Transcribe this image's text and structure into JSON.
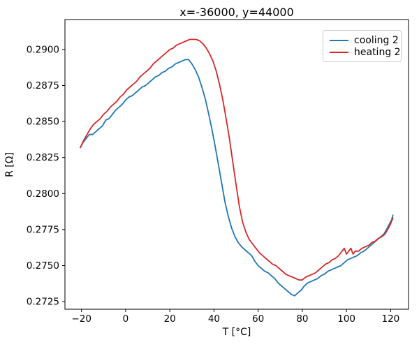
{
  "figure": {
    "title": "x=-36000, y=44000",
    "background": "#ffffff"
  },
  "chart_data": {
    "type": "line",
    "title": "x=-36000, y=44000",
    "xlabel": "T [°C]",
    "ylabel": "R [Ω]",
    "xlim": [
      -27.5,
      128.1
    ],
    "ylim": [
      0.27197,
      0.29208
    ],
    "xticks": [
      -20,
      0,
      20,
      40,
      60,
      80,
      100,
      120
    ],
    "yticks": [
      0.2725,
      0.275,
      0.2775,
      0.28,
      0.2825,
      0.285,
      0.2875,
      0.29
    ],
    "grid": false,
    "legend_position": "upper right",
    "axis_color": "#000000",
    "series": [
      {
        "name": "cooling 2",
        "color": "#1f77b4",
        "points": [
          [
            -20.5,
            0.2832
          ],
          [
            -19.5,
            0.2835
          ],
          [
            -18,
            0.2838
          ],
          [
            -16.5,
            0.2841
          ],
          [
            -15,
            0.2841
          ],
          [
            -13.5,
            0.2843
          ],
          [
            -12,
            0.2845
          ],
          [
            -10.5,
            0.2847
          ],
          [
            -9,
            0.2851
          ],
          [
            -7.5,
            0.2852
          ],
          [
            -6,
            0.2855
          ],
          [
            -4.5,
            0.2858
          ],
          [
            -3,
            0.286
          ],
          [
            -1.5,
            0.2862
          ],
          [
            0,
            0.2865
          ],
          [
            1.5,
            0.2867
          ],
          [
            3,
            0.2868
          ],
          [
            4.5,
            0.287
          ],
          [
            6,
            0.2872
          ],
          [
            7.5,
            0.2874
          ],
          [
            9,
            0.2875
          ],
          [
            10.5,
            0.2877
          ],
          [
            12,
            0.2879
          ],
          [
            13.5,
            0.2881
          ],
          [
            15,
            0.2882
          ],
          [
            16.5,
            0.2884
          ],
          [
            18,
            0.2885
          ],
          [
            19.5,
            0.2887
          ],
          [
            21,
            0.2888
          ],
          [
            22.5,
            0.289
          ],
          [
            24,
            0.2891
          ],
          [
            25.5,
            0.2892
          ],
          [
            27,
            0.2893
          ],
          [
            28.5,
            0.2893
          ],
          [
            30,
            0.289
          ],
          [
            31.5,
            0.2886
          ],
          [
            33,
            0.2881
          ],
          [
            34.5,
            0.2874
          ],
          [
            36,
            0.2866
          ],
          [
            37.5,
            0.2856
          ],
          [
            39,
            0.2845
          ],
          [
            40.5,
            0.2833
          ],
          [
            42,
            0.282
          ],
          [
            43.5,
            0.2807
          ],
          [
            45,
            0.2794
          ],
          [
            46.5,
            0.2784
          ],
          [
            48,
            0.2776
          ],
          [
            49.5,
            0.277
          ],
          [
            51,
            0.2766
          ],
          [
            52.5,
            0.2763
          ],
          [
            54,
            0.2761
          ],
          [
            55.5,
            0.2759
          ],
          [
            57,
            0.2757
          ],
          [
            58.5,
            0.2753
          ],
          [
            60,
            0.275
          ],
          [
            61.5,
            0.2748
          ],
          [
            63,
            0.2746
          ],
          [
            64.5,
            0.2745
          ],
          [
            66,
            0.2743
          ],
          [
            67.5,
            0.2741
          ],
          [
            69,
            0.2738
          ],
          [
            70.5,
            0.2736
          ],
          [
            72,
            0.2734
          ],
          [
            73.5,
            0.2732
          ],
          [
            75,
            0.273
          ],
          [
            76.5,
            0.2729
          ],
          [
            78,
            0.2731
          ],
          [
            79.5,
            0.2733
          ],
          [
            81,
            0.2736
          ],
          [
            82.5,
            0.2738
          ],
          [
            84,
            0.2739
          ],
          [
            85.5,
            0.274
          ],
          [
            87,
            0.2741
          ],
          [
            88.5,
            0.2743
          ],
          [
            90,
            0.2744
          ],
          [
            91.5,
            0.2746
          ],
          [
            93,
            0.2747
          ],
          [
            94.5,
            0.2748
          ],
          [
            96,
            0.2749
          ],
          [
            97.5,
            0.275
          ],
          [
            99,
            0.2752
          ],
          [
            100.5,
            0.2754
          ],
          [
            102,
            0.2755
          ],
          [
            103.5,
            0.2756
          ],
          [
            105,
            0.2757
          ],
          [
            106.5,
            0.2759
          ],
          [
            108,
            0.276
          ],
          [
            109.5,
            0.2762
          ],
          [
            111,
            0.2764
          ],
          [
            112.5,
            0.2766
          ],
          [
            114,
            0.2768
          ],
          [
            115.5,
            0.277
          ],
          [
            117,
            0.2772
          ],
          [
            118.5,
            0.2776
          ],
          [
            119.5,
            0.2779
          ],
          [
            120.5,
            0.2782
          ],
          [
            121,
            0.2785
          ]
        ]
      },
      {
        "name": "heating 2",
        "color": "#d62728",
        "points": [
          [
            -20.5,
            0.2832
          ],
          [
            -19,
            0.2837
          ],
          [
            -17.5,
            0.2841
          ],
          [
            -16,
            0.2845
          ],
          [
            -14.5,
            0.2848
          ],
          [
            -13,
            0.285
          ],
          [
            -11.5,
            0.2852
          ],
          [
            -10,
            0.2855
          ],
          [
            -8.5,
            0.2857
          ],
          [
            -7,
            0.286
          ],
          [
            -5.5,
            0.2862
          ],
          [
            -4,
            0.2864
          ],
          [
            -2.5,
            0.2867
          ],
          [
            -1,
            0.2869
          ],
          [
            0.5,
            0.2872
          ],
          [
            2,
            0.2874
          ],
          [
            3.5,
            0.2876
          ],
          [
            5,
            0.2878
          ],
          [
            6.5,
            0.2881
          ],
          [
            8,
            0.2883
          ],
          [
            9.5,
            0.2885
          ],
          [
            11,
            0.2887
          ],
          [
            12.5,
            0.289
          ],
          [
            14,
            0.2892
          ],
          [
            15.5,
            0.2894
          ],
          [
            17,
            0.2896
          ],
          [
            18.5,
            0.2898
          ],
          [
            20,
            0.29
          ],
          [
            21.5,
            0.2901
          ],
          [
            23,
            0.2903
          ],
          [
            24.5,
            0.2904
          ],
          [
            26,
            0.2905
          ],
          [
            27.5,
            0.2906
          ],
          [
            29,
            0.2907
          ],
          [
            30.5,
            0.2907
          ],
          [
            32,
            0.2907
          ],
          [
            33.5,
            0.2906
          ],
          [
            35,
            0.2904
          ],
          [
            36.5,
            0.2901
          ],
          [
            38,
            0.2897
          ],
          [
            39.5,
            0.2892
          ],
          [
            41,
            0.2885
          ],
          [
            42.5,
            0.2876
          ],
          [
            44,
            0.2865
          ],
          [
            45.5,
            0.2852
          ],
          [
            47,
            0.2838
          ],
          [
            48.5,
            0.2822
          ],
          [
            50,
            0.2806
          ],
          [
            51.5,
            0.2791
          ],
          [
            53,
            0.278
          ],
          [
            54.5,
            0.2773
          ],
          [
            56,
            0.2768
          ],
          [
            57.5,
            0.2765
          ],
          [
            59,
            0.2762
          ],
          [
            60.5,
            0.2759
          ],
          [
            62,
            0.2757
          ],
          [
            63.5,
            0.2755
          ],
          [
            65,
            0.2753
          ],
          [
            66.5,
            0.2751
          ],
          [
            68,
            0.275
          ],
          [
            69.5,
            0.2748
          ],
          [
            71,
            0.2746
          ],
          [
            72.5,
            0.2744
          ],
          [
            74,
            0.2743
          ],
          [
            75.5,
            0.2742
          ],
          [
            77,
            0.2741
          ],
          [
            78.5,
            0.274
          ],
          [
            80,
            0.274
          ],
          [
            81.5,
            0.2742
          ],
          [
            83,
            0.2743
          ],
          [
            84.5,
            0.2744
          ],
          [
            86,
            0.2745
          ],
          [
            87.5,
            0.2747
          ],
          [
            89,
            0.2749
          ],
          [
            90.5,
            0.2751
          ],
          [
            92,
            0.2752
          ],
          [
            93.5,
            0.2754
          ],
          [
            95,
            0.2755
          ],
          [
            96.5,
            0.2757
          ],
          [
            98,
            0.276
          ],
          [
            99,
            0.2762
          ],
          [
            100,
            0.2758
          ],
          [
            101,
            0.276
          ],
          [
            102,
            0.2762
          ],
          [
            103,
            0.2758
          ],
          [
            104,
            0.276
          ],
          [
            105.5,
            0.276
          ],
          [
            107,
            0.2762
          ],
          [
            108.5,
            0.2763
          ],
          [
            110,
            0.2764
          ],
          [
            111.5,
            0.2766
          ],
          [
            113,
            0.2767
          ],
          [
            114.5,
            0.2769
          ],
          [
            116,
            0.277
          ],
          [
            117.5,
            0.2772
          ],
          [
            119,
            0.2776
          ],
          [
            120,
            0.2779
          ],
          [
            121,
            0.2783
          ]
        ]
      }
    ]
  }
}
